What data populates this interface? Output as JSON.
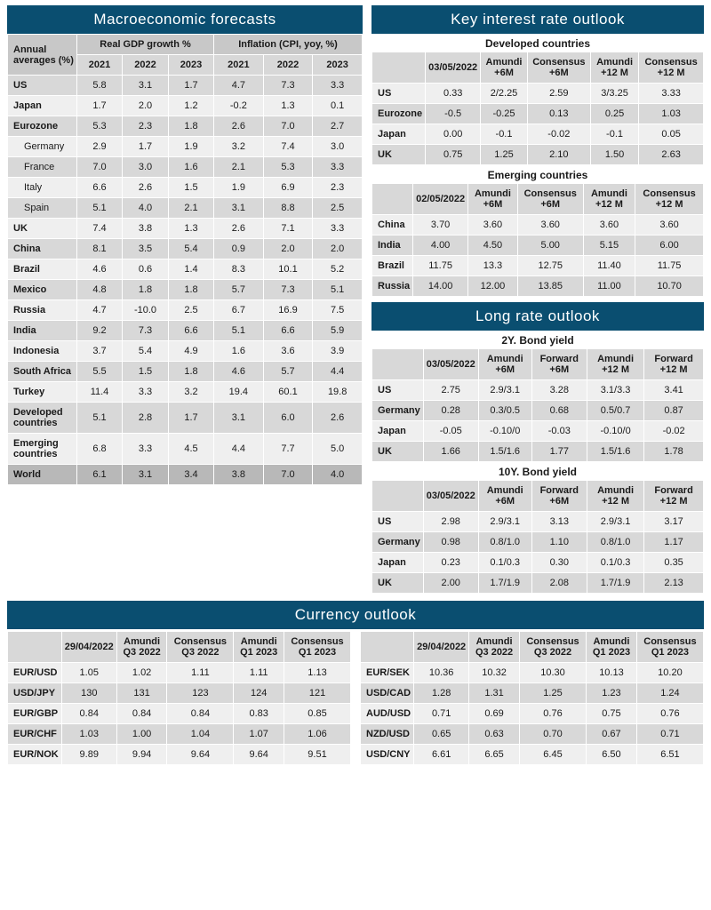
{
  "macro": {
    "title": "Macroeconomic forecasts",
    "corner": "Annual averages (%)",
    "group1": "Real GDP growth %",
    "group2": "Inflation (CPI, yoy, %)",
    "years": [
      "2021",
      "2022",
      "2023"
    ],
    "rows": [
      {
        "l": "US",
        "i": false,
        "v": [
          "5.8",
          "3.1",
          "1.7",
          "4.7",
          "7.3",
          "3.3"
        ]
      },
      {
        "l": "Japan",
        "i": false,
        "v": [
          "1.7",
          "2.0",
          "1.2",
          "-0.2",
          "1.3",
          "0.1"
        ]
      },
      {
        "l": "Eurozone",
        "i": false,
        "v": [
          "5.3",
          "2.3",
          "1.8",
          "2.6",
          "7.0",
          "2.7"
        ]
      },
      {
        "l": "Germany",
        "i": true,
        "v": [
          "2.9",
          "1.7",
          "1.9",
          "3.2",
          "7.4",
          "3.0"
        ]
      },
      {
        "l": "France",
        "i": true,
        "v": [
          "7.0",
          "3.0",
          "1.6",
          "2.1",
          "5.3",
          "3.3"
        ]
      },
      {
        "l": "Italy",
        "i": true,
        "v": [
          "6.6",
          "2.6",
          "1.5",
          "1.9",
          "6.9",
          "2.3"
        ]
      },
      {
        "l": "Spain",
        "i": true,
        "v": [
          "5.1",
          "4.0",
          "2.1",
          "3.1",
          "8.8",
          "2.5"
        ]
      },
      {
        "l": "UK",
        "i": false,
        "v": [
          "7.4",
          "3.8",
          "1.3",
          "2.6",
          "7.1",
          "3.3"
        ]
      },
      {
        "l": "China",
        "i": false,
        "v": [
          "8.1",
          "3.5",
          "5.4",
          "0.9",
          "2.0",
          "2.0"
        ]
      },
      {
        "l": "Brazil",
        "i": false,
        "v": [
          "4.6",
          "0.6",
          "1.4",
          "8.3",
          "10.1",
          "5.2"
        ]
      },
      {
        "l": "Mexico",
        "i": false,
        "v": [
          "4.8",
          "1.8",
          "1.8",
          "5.7",
          "7.3",
          "5.1"
        ]
      },
      {
        "l": "Russia",
        "i": false,
        "v": [
          "4.7",
          "-10.0",
          "2.5",
          "6.7",
          "16.9",
          "7.5"
        ]
      },
      {
        "l": "India",
        "i": false,
        "v": [
          "9.2",
          "7.3",
          "6.6",
          "5.1",
          "6.6",
          "5.9"
        ]
      },
      {
        "l": "Indonesia",
        "i": false,
        "v": [
          "3.7",
          "5.4",
          "4.9",
          "1.6",
          "3.6",
          "3.9"
        ]
      },
      {
        "l": "South Africa",
        "i": false,
        "v": [
          "5.5",
          "1.5",
          "1.8",
          "4.6",
          "5.7",
          "4.4"
        ]
      },
      {
        "l": "Turkey",
        "i": false,
        "v": [
          "11.4",
          "3.3",
          "3.2",
          "19.4",
          "60.1",
          "19.8"
        ]
      },
      {
        "l": "Developed countries",
        "i": false,
        "v": [
          "5.1",
          "2.8",
          "1.7",
          "3.1",
          "6.0",
          "2.6"
        ]
      },
      {
        "l": "Emerging countries",
        "i": false,
        "v": [
          "6.8",
          "3.3",
          "4.5",
          "4.4",
          "7.7",
          "5.0"
        ]
      }
    ],
    "world": {
      "l": "World",
      "v": [
        "6.1",
        "3.1",
        "3.4",
        "3.8",
        "7.0",
        "4.0"
      ]
    }
  },
  "rates": {
    "title": "Key interest rate outlook",
    "dev_sub": "Developed countries",
    "em_sub": "Emerging countries",
    "dev_cols": [
      "03/05/2022",
      "Amundi +6M",
      "Consensus +6M",
      "Amundi +12 M",
      "Consensus +12 M"
    ],
    "em_cols": [
      "02/05/2022",
      "Amundi +6M",
      "Consensus +6M",
      "Amundi +12 M",
      "Consensus +12 M"
    ],
    "dev_rows": [
      {
        "l": "US",
        "v": [
          "0.33",
          "2/2.25",
          "2.59",
          "3/3.25",
          "3.33"
        ]
      },
      {
        "l": "Eurozone",
        "v": [
          "-0.5",
          "-0.25",
          "0.13",
          "0.25",
          "1.03"
        ]
      },
      {
        "l": "Japan",
        "v": [
          "0.00",
          "-0.1",
          "-0.02",
          "-0.1",
          "0.05"
        ]
      },
      {
        "l": "UK",
        "v": [
          "0.75",
          "1.25",
          "2.10",
          "1.50",
          "2.63"
        ]
      }
    ],
    "em_rows": [
      {
        "l": "China",
        "v": [
          "3.70",
          "3.60",
          "3.60",
          "3.60",
          "3.60"
        ]
      },
      {
        "l": "India",
        "v": [
          "4.00",
          "4.50",
          "5.00",
          "5.15",
          "6.00"
        ]
      },
      {
        "l": "Brazil",
        "v": [
          "11.75",
          "13.3",
          "12.75",
          "11.40",
          "11.75"
        ]
      },
      {
        "l": "Russia",
        "v": [
          "14.00",
          "12.00",
          "13.85",
          "11.00",
          "10.70"
        ]
      }
    ]
  },
  "long": {
    "title": "Long rate outlook",
    "sub2": "2Y. Bond yield",
    "sub10": "10Y. Bond yield",
    "cols": [
      "03/05/2022",
      "Amundi +6M",
      "Forward +6M",
      "Amundi +12 M",
      "Forward +12 M"
    ],
    "r2": [
      {
        "l": "US",
        "v": [
          "2.75",
          "2.9/3.1",
          "3.28",
          "3.1/3.3",
          "3.41"
        ]
      },
      {
        "l": "Germany",
        "v": [
          "0.28",
          "0.3/0.5",
          "0.68",
          "0.5/0.7",
          "0.87"
        ]
      },
      {
        "l": "Japan",
        "v": [
          "-0.05",
          "-0.10/0",
          "-0.03",
          "-0.10/0",
          "-0.02"
        ]
      },
      {
        "l": "UK",
        "v": [
          "1.66",
          "1.5/1.6",
          "1.77",
          "1.5/1.6",
          "1.78"
        ]
      }
    ],
    "r10": [
      {
        "l": "US",
        "v": [
          "2.98",
          "2.9/3.1",
          "3.13",
          "2.9/3.1",
          "3.17"
        ]
      },
      {
        "l": "Germany",
        "v": [
          "0.98",
          "0.8/1.0",
          "1.10",
          "0.8/1.0",
          "1.17"
        ]
      },
      {
        "l": "Japan",
        "v": [
          "0.23",
          "0.1/0.3",
          "0.30",
          "0.1/0.3",
          "0.35"
        ]
      },
      {
        "l": "UK",
        "v": [
          "2.00",
          "1.7/1.9",
          "2.08",
          "1.7/1.9",
          "2.13"
        ]
      }
    ]
  },
  "fx": {
    "title": "Currency outlook",
    "cols": [
      "29/04/2022",
      "Amundi Q3 2022",
      "Consensus Q3 2022",
      "Amundi Q1 2023",
      "Consensus Q1 2023"
    ],
    "left": [
      {
        "l": "EUR/USD",
        "v": [
          "1.05",
          "1.02",
          "1.11",
          "1.11",
          "1.13"
        ]
      },
      {
        "l": "USD/JPY",
        "v": [
          "130",
          "131",
          "123",
          "124",
          "121"
        ]
      },
      {
        "l": "EUR/GBP",
        "v": [
          "0.84",
          "0.84",
          "0.84",
          "0.83",
          "0.85"
        ]
      },
      {
        "l": "EUR/CHF",
        "v": [
          "1.03",
          "1.00",
          "1.04",
          "1.07",
          "1.06"
        ]
      },
      {
        "l": "EUR/NOK",
        "v": [
          "9.89",
          "9.94",
          "9.64",
          "9.64",
          "9.51"
        ]
      }
    ],
    "right": [
      {
        "l": "EUR/SEK",
        "v": [
          "10.36",
          "10.32",
          "10.30",
          "10.13",
          "10.20"
        ]
      },
      {
        "l": "USD/CAD",
        "v": [
          "1.28",
          "1.31",
          "1.25",
          "1.23",
          "1.24"
        ]
      },
      {
        "l": "AUD/USD",
        "v": [
          "0.71",
          "0.69",
          "0.76",
          "0.75",
          "0.76"
        ]
      },
      {
        "l": "NZD/USD",
        "v": [
          "0.65",
          "0.63",
          "0.70",
          "0.67",
          "0.71"
        ]
      },
      {
        "l": "USD/CNY",
        "v": [
          "6.61",
          "6.65",
          "6.45",
          "6.50",
          "6.51"
        ]
      }
    ]
  }
}
